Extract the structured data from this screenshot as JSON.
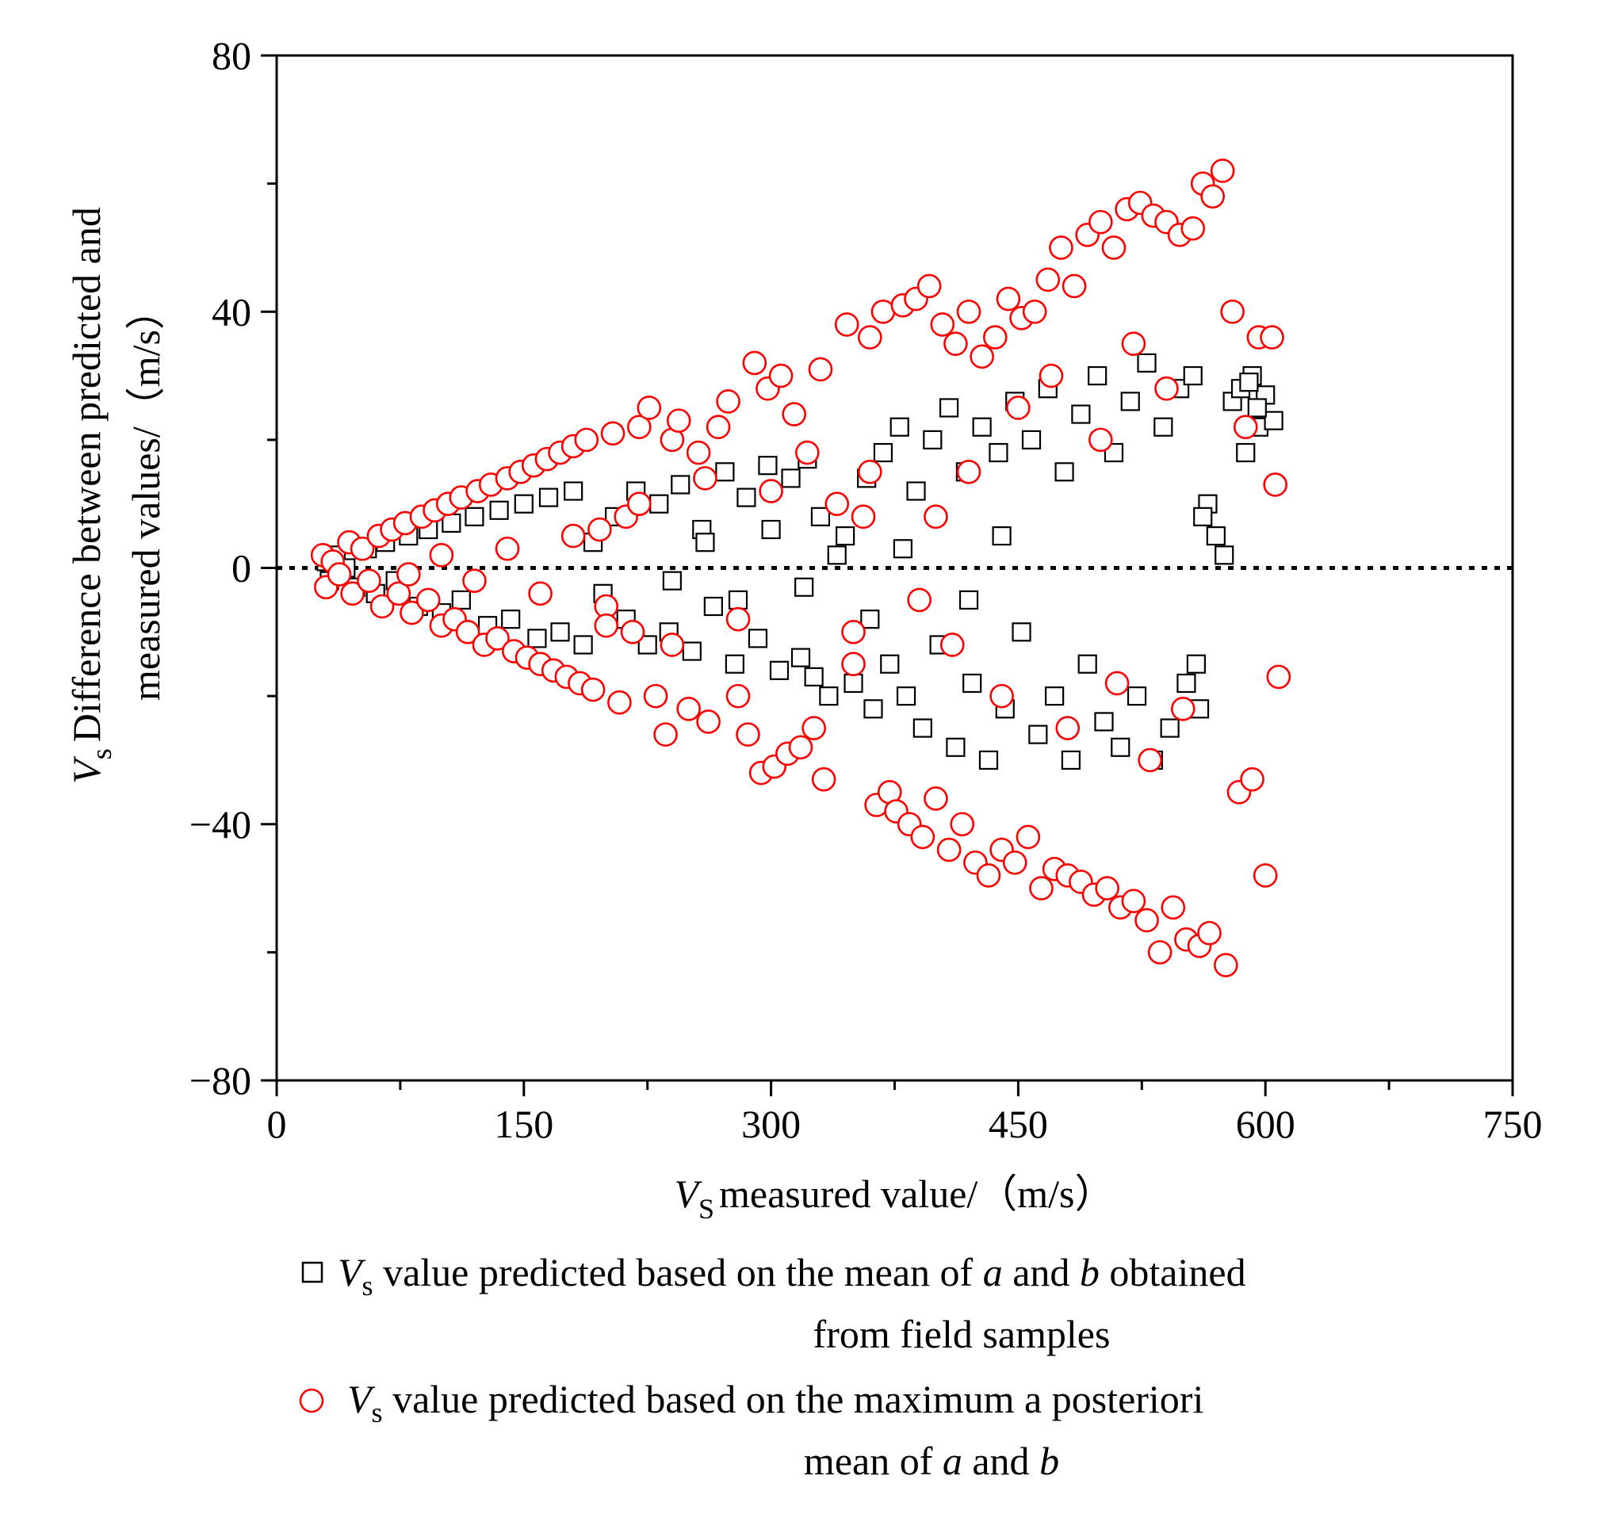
{
  "chart_data": {
    "type": "scatter",
    "title": "",
    "xlabel": {
      "symbol": "V",
      "subscript": "S",
      "text": "measured value/（m/s）"
    },
    "ylabel": {
      "symbol": "V",
      "subscript": "s",
      "line1": "Difference between predicted and",
      "line2": "measured values/（m/s）"
    },
    "xlim": [
      0,
      750
    ],
    "ylim": [
      -80,
      80
    ],
    "xticks": [
      0,
      150,
      300,
      450,
      600,
      750
    ],
    "xtick_labels": [
      "0",
      "150",
      "300",
      "450",
      "600",
      "750"
    ],
    "yticks": [
      -80,
      -40,
      0,
      40,
      80
    ],
    "ytick_labels": [
      "−80",
      "−40",
      "0",
      "40",
      "80"
    ],
    "reference_line": {
      "y": 0,
      "style": "dotted"
    },
    "legend": [
      {
        "marker": "square",
        "color": "#000000",
        "parts": [
          {
            "t": "V",
            "style": "italic"
          },
          {
            "t": "s",
            "style": "sub"
          },
          {
            "t": " value predicted based on the mean of ",
            "style": "normal"
          },
          {
            "t": "a",
            "style": "italic"
          },
          {
            "t": " and ",
            "style": "normal"
          },
          {
            "t": "b",
            "style": "italic"
          },
          {
            "t": " obtained",
            "style": "normal"
          }
        ],
        "line2": "from field samples"
      },
      {
        "marker": "circle",
        "color": "#ff0000",
        "parts": [
          {
            "t": "V",
            "style": "italic"
          },
          {
            "t": "s",
            "style": "sub"
          },
          {
            "t": " value predicted based on the maximum a posteriori",
            "style": "normal"
          }
        ],
        "line2_parts": [
          {
            "t": "mean of ",
            "style": "normal"
          },
          {
            "t": "a",
            "style": "italic"
          },
          {
            "t": " and ",
            "style": "normal"
          },
          {
            "t": "b",
            "style": "italic"
          }
        ]
      }
    ],
    "series": [
      {
        "name": "mean of a and b from field samples",
        "marker": "square",
        "color": "#000000",
        "points": [
          [
            30,
            1
          ],
          [
            32,
            -2
          ],
          [
            36,
            2
          ],
          [
            42,
            0
          ],
          [
            48,
            -3
          ],
          [
            55,
            3
          ],
          [
            60,
            -4
          ],
          [
            66,
            4
          ],
          [
            72,
            -2
          ],
          [
            80,
            5
          ],
          [
            86,
            -6
          ],
          [
            92,
            6
          ],
          [
            100,
            -7
          ],
          [
            106,
            7
          ],
          [
            112,
            -5
          ],
          [
            120,
            8
          ],
          [
            128,
            -9
          ],
          [
            135,
            9
          ],
          [
            142,
            -8
          ],
          [
            150,
            10
          ],
          [
            158,
            -11
          ],
          [
            165,
            11
          ],
          [
            172,
            -10
          ],
          [
            180,
            12
          ],
          [
            186,
            -12
          ],
          [
            192,
            4
          ],
          [
            198,
            -4
          ],
          [
            205,
            8
          ],
          [
            212,
            -8
          ],
          [
            218,
            12
          ],
          [
            225,
            -12
          ],
          [
            232,
            10
          ],
          [
            238,
            -10
          ],
          [
            245,
            13
          ],
          [
            252,
            -13
          ],
          [
            258,
            6
          ],
          [
            265,
            -6
          ],
          [
            272,
            15
          ],
          [
            278,
            -15
          ],
          [
            285,
            11
          ],
          [
            292,
            -11
          ],
          [
            298,
            16
          ],
          [
            305,
            -16
          ],
          [
            312,
            14
          ],
          [
            318,
            -14
          ],
          [
            322,
            17
          ],
          [
            326,
            -17
          ],
          [
            330,
            8
          ],
          [
            335,
            -20
          ],
          [
            345,
            5
          ],
          [
            350,
            -18
          ],
          [
            358,
            14
          ],
          [
            362,
            -22
          ],
          [
            368,
            18
          ],
          [
            372,
            -15
          ],
          [
            378,
            22
          ],
          [
            382,
            -20
          ],
          [
            388,
            12
          ],
          [
            392,
            -25
          ],
          [
            398,
            20
          ],
          [
            402,
            -12
          ],
          [
            408,
            25
          ],
          [
            412,
            -28
          ],
          [
            418,
            15
          ],
          [
            422,
            -18
          ],
          [
            428,
            22
          ],
          [
            432,
            -30
          ],
          [
            438,
            18
          ],
          [
            442,
            -22
          ],
          [
            448,
            26
          ],
          [
            452,
            -10
          ],
          [
            458,
            20
          ],
          [
            462,
            -26
          ],
          [
            468,
            28
          ],
          [
            472,
            -20
          ],
          [
            478,
            15
          ],
          [
            482,
            -30
          ],
          [
            488,
            24
          ],
          [
            492,
            -15
          ],
          [
            498,
            30
          ],
          [
            502,
            -24
          ],
          [
            508,
            18
          ],
          [
            512,
            -28
          ],
          [
            518,
            26
          ],
          [
            522,
            -20
          ],
          [
            528,
            32
          ],
          [
            532,
            -30
          ],
          [
            538,
            22
          ],
          [
            542,
            -25
          ],
          [
            548,
            28
          ],
          [
            552,
            -18
          ],
          [
            556,
            30
          ],
          [
            560,
            -22
          ],
          [
            565,
            10
          ],
          [
            570,
            5
          ],
          [
            575,
            2
          ],
          [
            580,
            26
          ],
          [
            585,
            28
          ],
          [
            588,
            18
          ],
          [
            592,
            30
          ],
          [
            596,
            22
          ],
          [
            600,
            27
          ],
          [
            605,
            23
          ],
          [
            595,
            25
          ],
          [
            590,
            29
          ],
          [
            562,
            8
          ],
          [
            558,
            -15
          ],
          [
            440,
            5
          ],
          [
            420,
            -5
          ],
          [
            380,
            3
          ],
          [
            360,
            -8
          ],
          [
            340,
            2
          ],
          [
            320,
            -3
          ],
          [
            300,
            6
          ],
          [
            280,
            -5
          ],
          [
            260,
            4
          ],
          [
            240,
            -2
          ]
        ]
      },
      {
        "name": "maximum a posteriori mean of a and b",
        "marker": "circle",
        "color": "#ff0000",
        "points": [
          [
            28,
            2
          ],
          [
            30,
            -3
          ],
          [
            34,
            1
          ],
          [
            38,
            -1
          ],
          [
            44,
            4
          ],
          [
            46,
            -4
          ],
          [
            52,
            3
          ],
          [
            56,
            -2
          ],
          [
            62,
            5
          ],
          [
            64,
            -6
          ],
          [
            70,
            6
          ],
          [
            74,
            -4
          ],
          [
            78,
            7
          ],
          [
            82,
            -7
          ],
          [
            88,
            8
          ],
          [
            92,
            -5
          ],
          [
            96,
            9
          ],
          [
            100,
            -9
          ],
          [
            104,
            10
          ],
          [
            108,
            -8
          ],
          [
            112,
            11
          ],
          [
            116,
            -10
          ],
          [
            122,
            12
          ],
          [
            126,
            -12
          ],
          [
            130,
            13
          ],
          [
            134,
            -11
          ],
          [
            140,
            14
          ],
          [
            144,
            -13
          ],
          [
            148,
            15
          ],
          [
            152,
            -14
          ],
          [
            156,
            16
          ],
          [
            160,
            -15
          ],
          [
            164,
            17
          ],
          [
            168,
            -16
          ],
          [
            172,
            18
          ],
          [
            176,
            -17
          ],
          [
            180,
            19
          ],
          [
            184,
            -18
          ],
          [
            188,
            20
          ],
          [
            192,
            -19
          ],
          [
            196,
            6
          ],
          [
            200,
            -6
          ],
          [
            204,
            21
          ],
          [
            208,
            -21
          ],
          [
            212,
            8
          ],
          [
            216,
            -10
          ],
          [
            220,
            22
          ],
          [
            226,
            25
          ],
          [
            230,
            -20
          ],
          [
            236,
            -26
          ],
          [
            240,
            20
          ],
          [
            244,
            23
          ],
          [
            250,
            -22
          ],
          [
            256,
            18
          ],
          [
            262,
            -24
          ],
          [
            268,
            22
          ],
          [
            274,
            26
          ],
          [
            280,
            -20
          ],
          [
            286,
            -26
          ],
          [
            290,
            32
          ],
          [
            294,
            -32
          ],
          [
            298,
            28
          ],
          [
            302,
            -31
          ],
          [
            306,
            30
          ],
          [
            310,
            -29
          ],
          [
            314,
            24
          ],
          [
            318,
            -28
          ],
          [
            322,
            18
          ],
          [
            326,
            -25
          ],
          [
            330,
            31
          ],
          [
            332,
            -33
          ],
          [
            340,
            10
          ],
          [
            346,
            38
          ],
          [
            350,
            -15
          ],
          [
            356,
            8
          ],
          [
            360,
            36
          ],
          [
            364,
            -37
          ],
          [
            368,
            40
          ],
          [
            372,
            -35
          ],
          [
            376,
            -38
          ],
          [
            380,
            41
          ],
          [
            384,
            -40
          ],
          [
            388,
            42
          ],
          [
            392,
            -42
          ],
          [
            396,
            44
          ],
          [
            400,
            -36
          ],
          [
            404,
            38
          ],
          [
            408,
            -44
          ],
          [
            412,
            35
          ],
          [
            416,
            -40
          ],
          [
            420,
            40
          ],
          [
            424,
            -46
          ],
          [
            428,
            33
          ],
          [
            432,
            -48
          ],
          [
            436,
            36
          ],
          [
            440,
            -44
          ],
          [
            444,
            42
          ],
          [
            448,
            -46
          ],
          [
            452,
            39
          ],
          [
            456,
            -42
          ],
          [
            460,
            40
          ],
          [
            464,
            -50
          ],
          [
            468,
            45
          ],
          [
            472,
            -47
          ],
          [
            476,
            50
          ],
          [
            480,
            -48
          ],
          [
            484,
            44
          ],
          [
            488,
            -49
          ],
          [
            492,
            52
          ],
          [
            496,
            -51
          ],
          [
            500,
            54
          ],
          [
            504,
            -50
          ],
          [
            508,
            50
          ],
          [
            512,
            -53
          ],
          [
            516,
            56
          ],
          [
            520,
            -52
          ],
          [
            524,
            57
          ],
          [
            528,
            -55
          ],
          [
            532,
            55
          ],
          [
            536,
            -60
          ],
          [
            540,
            54
          ],
          [
            544,
            -53
          ],
          [
            548,
            52
          ],
          [
            552,
            -58
          ],
          [
            556,
            53
          ],
          [
            560,
            -59
          ],
          [
            562,
            60
          ],
          [
            566,
            -57
          ],
          [
            568,
            58
          ],
          [
            574,
            62
          ],
          [
            576,
            -62
          ],
          [
            580,
            40
          ],
          [
            584,
            -35
          ],
          [
            588,
            22
          ],
          [
            592,
            -33
          ],
          [
            596,
            36
          ],
          [
            600,
            -48
          ],
          [
            604,
            36
          ],
          [
            606,
            13
          ],
          [
            608,
            -17
          ],
          [
            450,
            25
          ],
          [
            440,
            -20
          ],
          [
            420,
            15
          ],
          [
            410,
            -12
          ],
          [
            400,
            8
          ],
          [
            390,
            -5
          ],
          [
            470,
            30
          ],
          [
            480,
            -25
          ],
          [
            500,
            20
          ],
          [
            510,
            -18
          ],
          [
            520,
            35
          ],
          [
            530,
            -30
          ],
          [
            540,
            28
          ],
          [
            550,
            -22
          ],
          [
            360,
            15
          ],
          [
            350,
            -10
          ],
          [
            300,
            12
          ],
          [
            280,
            -8
          ],
          [
            260,
            14
          ],
          [
            240,
            -12
          ],
          [
            220,
            10
          ],
          [
            200,
            -9
          ],
          [
            180,
            5
          ],
          [
            160,
            -4
          ],
          [
            140,
            3
          ],
          [
            120,
            -2
          ],
          [
            100,
            2
          ],
          [
            80,
            -1
          ]
        ]
      }
    ]
  }
}
